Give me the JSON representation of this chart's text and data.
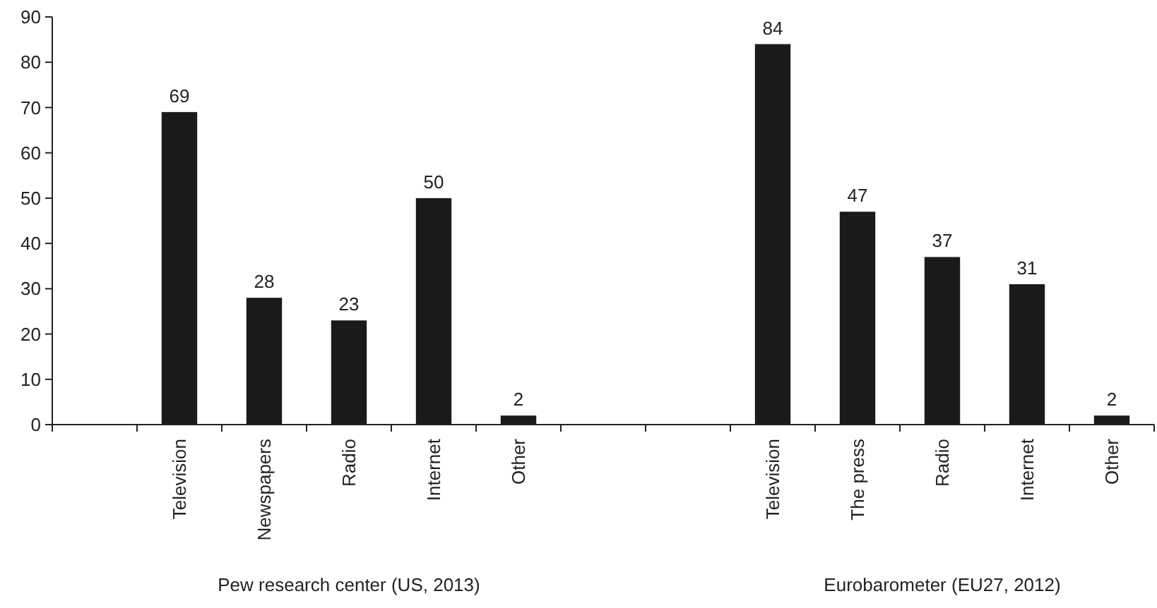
{
  "chart_data": {
    "type": "bar",
    "categories": [
      null,
      "Television",
      "Newspapers",
      "Radio",
      "Internet",
      "Other",
      null,
      null,
      "Television",
      "The press",
      "Radio",
      "Internet",
      "Other"
    ],
    "values": [
      null,
      69,
      28,
      23,
      50,
      2,
      null,
      null,
      84,
      47,
      37,
      31,
      2
    ],
    "color": "#1a1a1a",
    "ylim": [
      0,
      90
    ],
    "yticks": [
      0,
      10,
      20,
      30,
      40,
      50,
      60,
      70,
      80,
      90
    ],
    "grid": false,
    "data_labels": true,
    "annotations": [
      "Pew research center (US, 2013)",
      "Eurobarometer (EU27, 2012)"
    ]
  }
}
